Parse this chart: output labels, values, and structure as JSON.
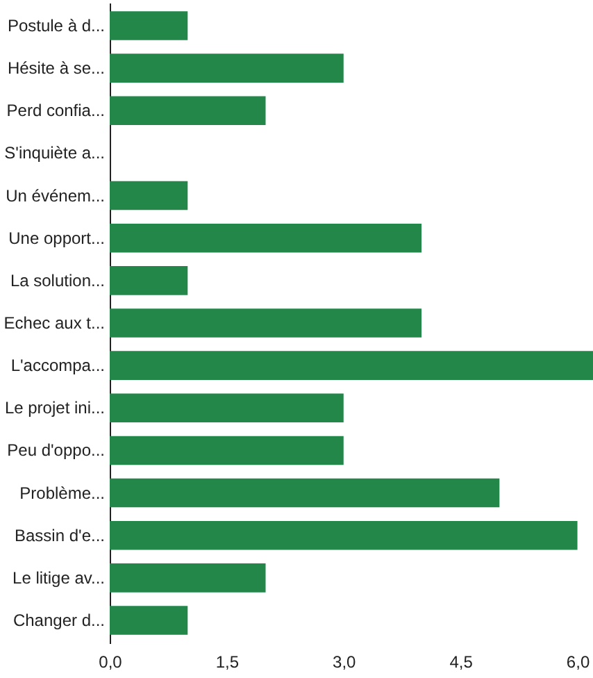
{
  "chart_data": {
    "type": "bar",
    "orientation": "horizontal",
    "categories": [
      "Postule à d...",
      "Hésite à se...",
      "Perd confia...",
      "S'inquiète a...",
      "Un événem...",
      "Une opport...",
      "La solution...",
      "Echec aux t...",
      "L'accompa...",
      "Le projet ini...",
      "Peu d'oppo...",
      "Problème...",
      "Bassin d'e...",
      "Le litige av...",
      "Changer d..."
    ],
    "values": [
      1,
      3,
      2,
      0,
      1,
      4,
      1,
      4,
      6.2,
      3,
      3,
      5,
      6,
      2,
      1
    ],
    "color": "#23874a",
    "xlim": [
      0,
      6.2
    ],
    "xticks": [
      {
        "value": 0,
        "label": "0,0"
      },
      {
        "value": 1.5,
        "label": "1,5"
      },
      {
        "value": 3,
        "label": "3,0"
      },
      {
        "value": 4.5,
        "label": "4,5"
      },
      {
        "value": 6,
        "label": "6,0"
      }
    ],
    "grid": false
  }
}
